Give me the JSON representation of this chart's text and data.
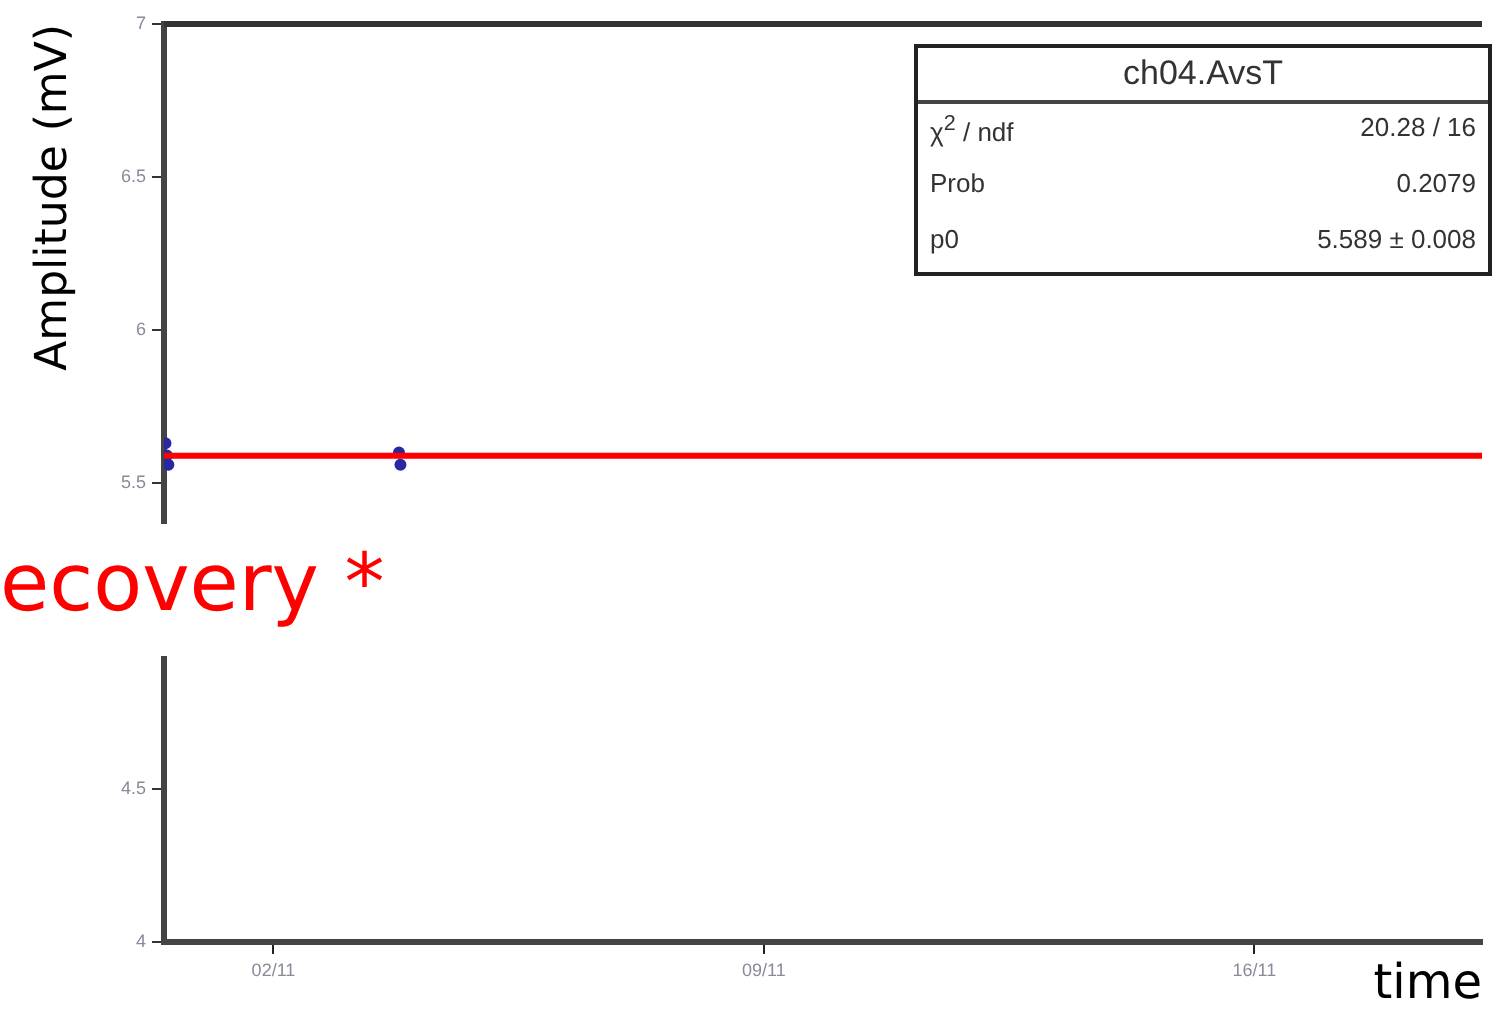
{
  "chart_data": {
    "type": "scatter",
    "xlabel": "time",
    "ylabel": "Amplitude (mV)",
    "xlim": [
      "--10-31T10:30",
      "--11-19T06:00"
    ],
    "xticks": [
      {
        "value": "--11-02",
        "label": "02/11"
      },
      {
        "value": "--11-09",
        "label": "09/11"
      },
      {
        "value": "--11-16",
        "label": "16/11"
      }
    ],
    "ylim": [
      4,
      7
    ],
    "yticks": [
      4,
      4.5,
      {
        "value": 5,
        "label": null
      },
      5.5,
      6,
      6.5,
      7
    ],
    "series": [
      {
        "color": "#2828a0",
        "x": [
          "--10-31T11:00",
          "--10-31T11:30",
          "--10-31T12:00",
          "--11-03T19:00",
          "--11-03T19:30"
        ],
        "values": [
          5.63,
          5.59,
          5.56,
          5.6,
          5.56
        ]
      }
    ],
    "ref_lines": [
      {
        "axis": "y",
        "value": 5.589,
        "color": "#ff0000"
      }
    ],
    "annotations": [
      "ch04.AvsT",
      "χ$^{2}$ / ndf",
      "20.28 / 16",
      "Prob",
      "0.2079",
      "p0",
      "5.589 ± 0.008",
      "ecovery *"
    ],
    "marker": "circle",
    "grid": false,
    "legend": false
  }
}
